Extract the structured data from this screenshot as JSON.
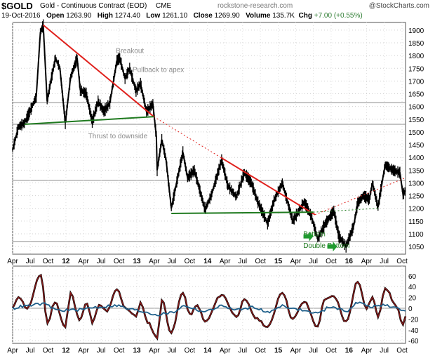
{
  "header": {
    "ticker": "$GOLD",
    "name": "Gold - Continuous Contract (EOD)",
    "exchange": "CME",
    "site": "rockstone-research.com",
    "brand": "@StockCharts.com",
    "date": "19-Oct-2016",
    "open_label": "Open",
    "open": "1263.90",
    "high_label": "High",
    "high": "1274.40",
    "low_label": "Low",
    "low": "1261.10",
    "close_label": "Close",
    "close": "1269.90",
    "volume_label": "Volume",
    "volume": "135.7K",
    "chg_label": "Chg",
    "chg": "+7.00 (+0.55%)",
    "up_color": "#2e7d32"
  },
  "chart_data": [
    {
      "type": "line",
      "title": "",
      "series_name": "",
      "ylim": [
        1020,
        1930
      ],
      "y_ticks": [
        1050,
        1100,
        1150,
        1200,
        1250,
        1300,
        1350,
        1400,
        1450,
        1500,
        1550,
        1600,
        1650,
        1700,
        1750,
        1800,
        1850,
        1900
      ],
      "x_ticks": [
        "Apr",
        "Jul",
        "Oct",
        "12",
        "Apr",
        "Jul",
        "Oct",
        "13",
        "Apr",
        "Jul",
        "Oct",
        "14",
        "Apr",
        "Jul",
        "Oct",
        "15",
        "Apr",
        "Jul",
        "Oct",
        "16",
        "Apr",
        "Jul",
        "Oct"
      ],
      "bold_ticks": [
        "12",
        "13",
        "14",
        "15",
        "16"
      ],
      "x_start": "2011-04-01",
      "x_end": "2016-10-19",
      "grid": true,
      "highlight_levels": [
        1070,
        1310,
        1530,
        1615
      ],
      "price": [
        {
          "x": "2011-04-01",
          "y": 1430
        },
        {
          "x": "2011-05-01",
          "y": 1520
        },
        {
          "x": "2011-06-01",
          "y": 1535
        },
        {
          "x": "2011-07-05",
          "y": 1590
        },
        {
          "x": "2011-08-01",
          "y": 1640
        },
        {
          "x": "2011-08-22",
          "y": 1890
        },
        {
          "x": "2011-09-06",
          "y": 1920
        },
        {
          "x": "2011-09-26",
          "y": 1620
        },
        {
          "x": "2011-10-15",
          "y": 1700
        },
        {
          "x": "2011-11-08",
          "y": 1790
        },
        {
          "x": "2011-12-01",
          "y": 1750
        },
        {
          "x": "2011-12-29",
          "y": 1535
        },
        {
          "x": "2012-01-25",
          "y": 1715
        },
        {
          "x": "2012-02-28",
          "y": 1790
        },
        {
          "x": "2012-03-15",
          "y": 1665
        },
        {
          "x": "2012-04-15",
          "y": 1650
        },
        {
          "x": "2012-05-16",
          "y": 1540
        },
        {
          "x": "2012-06-15",
          "y": 1620
        },
        {
          "x": "2012-07-15",
          "y": 1580
        },
        {
          "x": "2012-08-15",
          "y": 1615
        },
        {
          "x": "2012-09-20",
          "y": 1780
        },
        {
          "x": "2012-10-05",
          "y": 1790
        },
        {
          "x": "2012-11-01",
          "y": 1710
        },
        {
          "x": "2012-11-25",
          "y": 1750
        },
        {
          "x": "2012-12-28",
          "y": 1660
        },
        {
          "x": "2013-01-20",
          "y": 1690
        },
        {
          "x": "2013-02-20",
          "y": 1580
        },
        {
          "x": "2013-03-25",
          "y": 1610
        },
        {
          "x": "2013-04-12",
          "y": 1480
        },
        {
          "x": "2013-04-16",
          "y": 1350
        },
        {
          "x": "2013-05-10",
          "y": 1470
        },
        {
          "x": "2013-06-01",
          "y": 1390
        },
        {
          "x": "2013-06-28",
          "y": 1200
        },
        {
          "x": "2013-08-27",
          "y": 1420
        },
        {
          "x": "2013-09-20",
          "y": 1320
        },
        {
          "x": "2013-10-25",
          "y": 1350
        },
        {
          "x": "2013-12-19",
          "y": 1195
        },
        {
          "x": "2014-01-20",
          "y": 1250
        },
        {
          "x": "2014-03-15",
          "y": 1390
        },
        {
          "x": "2014-04-15",
          "y": 1290
        },
        {
          "x": "2014-05-30",
          "y": 1245
        },
        {
          "x": "2014-07-10",
          "y": 1340
        },
        {
          "x": "2014-08-15",
          "y": 1300
        },
        {
          "x": "2014-09-15",
          "y": 1230
        },
        {
          "x": "2014-11-07",
          "y": 1140
        },
        {
          "x": "2014-12-10",
          "y": 1230
        },
        {
          "x": "2015-01-22",
          "y": 1300
        },
        {
          "x": "2015-03-17",
          "y": 1150
        },
        {
          "x": "2015-05-15",
          "y": 1225
        },
        {
          "x": "2015-06-20",
          "y": 1170
        },
        {
          "x": "2015-07-24",
          "y": 1080
        },
        {
          "x": "2015-09-01",
          "y": 1140
        },
        {
          "x": "2015-10-15",
          "y": 1190
        },
        {
          "x": "2015-11-10",
          "y": 1090
        },
        {
          "x": "2015-12-17",
          "y": 1050
        },
        {
          "x": "2016-01-25",
          "y": 1130
        },
        {
          "x": "2016-02-15",
          "y": 1220
        },
        {
          "x": "2016-03-15",
          "y": 1250
        },
        {
          "x": "2016-04-15",
          "y": 1235
        },
        {
          "x": "2016-05-01",
          "y": 1300
        },
        {
          "x": "2016-05-30",
          "y": 1205
        },
        {
          "x": "2016-06-24",
          "y": 1320
        },
        {
          "x": "2016-07-06",
          "y": 1370
        },
        {
          "x": "2016-08-15",
          "y": 1350
        },
        {
          "x": "2016-09-20",
          "y": 1340
        },
        {
          "x": "2016-10-06",
          "y": 1255
        },
        {
          "x": "2016-10-19",
          "y": 1270
        }
      ],
      "trendlines": [
        {
          "color": "#e0201c",
          "dash": false,
          "points": [
            {
              "x": "2011-09-06",
              "y": 1920
            },
            {
              "x": "2013-03-30",
              "y": 1560
            }
          ]
        },
        {
          "color": "#e0201c",
          "dash": true,
          "points": [
            {
              "x": "2013-03-30",
              "y": 1560
            },
            {
              "x": "2014-03-10",
              "y": 1400
            }
          ]
        },
        {
          "color": "#e0201c",
          "dash": false,
          "points": [
            {
              "x": "2014-03-10",
              "y": 1400
            },
            {
              "x": "2015-07-10",
              "y": 1175
            }
          ]
        },
        {
          "color": "#e0201c",
          "dash": true,
          "points": [
            {
              "x": "2015-07-10",
              "y": 1175
            },
            {
              "x": "2016-10-19",
              "y": 1320
            }
          ]
        },
        {
          "color": "#1f7a1f",
          "dash": false,
          "points": [
            {
              "x": "2011-06-01",
              "y": 1530
            },
            {
              "x": "2013-03-30",
              "y": 1560
            }
          ]
        },
        {
          "color": "#1f7a1f",
          "dash": false,
          "points": [
            {
              "x": "2013-06-28",
              "y": 1180
            },
            {
              "x": "2015-07-01",
              "y": 1185
            }
          ]
        },
        {
          "color": "#1f7a1f",
          "dash": true,
          "points": [
            {
              "x": "2015-07-01",
              "y": 1185
            },
            {
              "x": "2016-06-01",
              "y": 1200
            }
          ]
        }
      ],
      "annotations": [
        {
          "text": "Breakout",
          "x": "2012-09-15",
          "y": 1810,
          "color": "#8c8c8c"
        },
        {
          "text": "Pullback to apex",
          "x": "2012-12-10",
          "y": 1735,
          "color": "#8c8c8c"
        },
        {
          "text": "Thrust to downside",
          "x": "2012-04-25",
          "y": 1475,
          "color": "#8c8c8c"
        },
        {
          "text": "Bottom",
          "x": "2015-05-10",
          "y": 1090,
          "color": "#1f7a1f"
        },
        {
          "text": "Double Bottom",
          "x": "2015-05-10",
          "y": 1045,
          "color": "#1f7a1f"
        }
      ],
      "arrows": [
        {
          "x": "2015-07-01",
          "y": 1090
        },
        {
          "x": "2015-11-01",
          "y": 1050
        }
      ]
    },
    {
      "type": "line",
      "title": "",
      "ylim": [
        -65,
        78
      ],
      "y_ticks": [
        -60,
        -40,
        -20,
        0,
        20,
        40,
        60
      ],
      "grid": true,
      "series": [
        {
          "color": "#8b1a1a",
          "values": [
            {
              "x": "2011-04-01",
              "y": 0
            },
            {
              "x": "2011-05-01",
              "y": 22
            },
            {
              "x": "2011-06-15",
              "y": 0
            },
            {
              "x": "2011-08-25",
              "y": 62
            },
            {
              "x": "2011-09-28",
              "y": -28
            },
            {
              "x": "2011-11-05",
              "y": 12
            },
            {
              "x": "2011-12-29",
              "y": -35
            },
            {
              "x": "2012-01-25",
              "y": 28
            },
            {
              "x": "2012-03-10",
              "y": -20
            },
            {
              "x": "2012-04-20",
              "y": 10
            },
            {
              "x": "2012-05-16",
              "y": -28
            },
            {
              "x": "2012-06-20",
              "y": 5
            },
            {
              "x": "2012-08-01",
              "y": -5
            },
            {
              "x": "2012-09-20",
              "y": 35
            },
            {
              "x": "2012-11-05",
              "y": 0
            },
            {
              "x": "2012-12-28",
              "y": -15
            },
            {
              "x": "2013-01-20",
              "y": 10
            },
            {
              "x": "2013-02-25",
              "y": -25
            },
            {
              "x": "2013-04-16",
              "y": -55
            },
            {
              "x": "2013-05-10",
              "y": 15
            },
            {
              "x": "2013-06-28",
              "y": -45
            },
            {
              "x": "2013-08-27",
              "y": 30
            },
            {
              "x": "2013-10-01",
              "y": -12
            },
            {
              "x": "2013-11-10",
              "y": 5
            },
            {
              "x": "2013-12-19",
              "y": -25
            },
            {
              "x": "2014-03-15",
              "y": 25
            },
            {
              "x": "2014-05-30",
              "y": -15
            },
            {
              "x": "2014-07-10",
              "y": 15
            },
            {
              "x": "2014-09-15",
              "y": -20
            },
            {
              "x": "2014-11-07",
              "y": -35
            },
            {
              "x": "2015-01-22",
              "y": 30
            },
            {
              "x": "2015-03-17",
              "y": -20
            },
            {
              "x": "2015-05-15",
              "y": 12
            },
            {
              "x": "2015-07-24",
              "y": -35
            },
            {
              "x": "2015-08-25",
              "y": 15
            },
            {
              "x": "2015-10-15",
              "y": 22
            },
            {
              "x": "2015-12-17",
              "y": -25
            },
            {
              "x": "2016-02-15",
              "y": 50
            },
            {
              "x": "2016-04-01",
              "y": 0
            },
            {
              "x": "2016-05-01",
              "y": 20
            },
            {
              "x": "2016-05-30",
              "y": -15
            },
            {
              "x": "2016-07-06",
              "y": 38
            },
            {
              "x": "2016-09-01",
              "y": 5
            },
            {
              "x": "2016-10-06",
              "y": -32
            },
            {
              "x": "2016-10-19",
              "y": -15
            }
          ]
        },
        {
          "color": "#1e5f8a",
          "values": [
            {
              "x": "2011-04-01",
              "y": 0
            },
            {
              "x": "2011-06-01",
              "y": 4
            },
            {
              "x": "2011-09-01",
              "y": 8
            },
            {
              "x": "2011-12-01",
              "y": -4
            },
            {
              "x": "2012-03-01",
              "y": -3
            },
            {
              "x": "2012-06-01",
              "y": 2
            },
            {
              "x": "2012-09-20",
              "y": 5
            },
            {
              "x": "2012-12-01",
              "y": -2
            },
            {
              "x": "2013-02-01",
              "y": -6
            },
            {
              "x": "2013-04-16",
              "y": -12
            },
            {
              "x": "2013-07-01",
              "y": -8
            },
            {
              "x": "2013-09-01",
              "y": 4
            },
            {
              "x": "2013-12-19",
              "y": -6
            },
            {
              "x": "2014-03-15",
              "y": 4
            },
            {
              "x": "2014-06-01",
              "y": -3
            },
            {
              "x": "2014-09-01",
              "y": 2
            },
            {
              "x": "2014-11-07",
              "y": -8
            },
            {
              "x": "2015-01-22",
              "y": 5
            },
            {
              "x": "2015-04-01",
              "y": -2
            },
            {
              "x": "2015-07-24",
              "y": -9
            },
            {
              "x": "2015-10-01",
              "y": 3
            },
            {
              "x": "2015-12-17",
              "y": -5
            },
            {
              "x": "2016-02-15",
              "y": 10
            },
            {
              "x": "2016-05-01",
              "y": 3
            },
            {
              "x": "2016-07-06",
              "y": 6
            },
            {
              "x": "2016-09-01",
              "y": 0
            },
            {
              "x": "2016-10-19",
              "y": -5
            }
          ]
        }
      ],
      "x_ticks": [
        "Apr",
        "Jul",
        "Oct",
        "12",
        "Apr",
        "Jul",
        "Oct",
        "13",
        "Apr",
        "Jul",
        "Oct",
        "14",
        "Apr",
        "Jul",
        "Oct",
        "15",
        "Apr",
        "Jul",
        "Oct",
        "16",
        "Apr",
        "Jul",
        "Oct"
      ]
    }
  ]
}
